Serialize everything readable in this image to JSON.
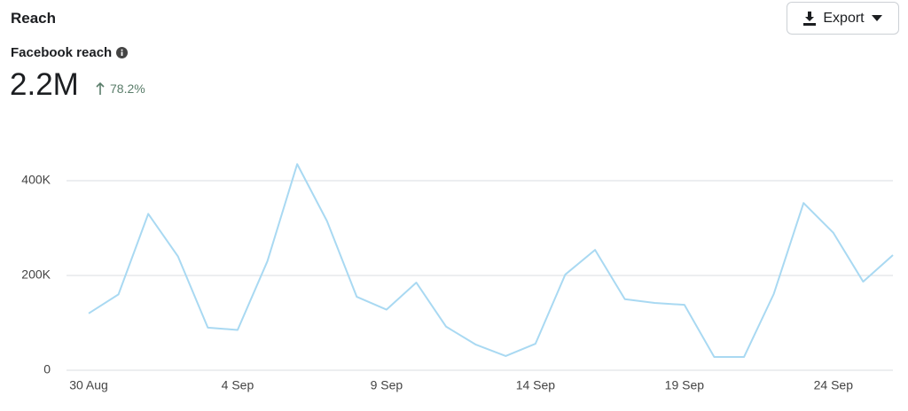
{
  "header": {
    "title": "Reach",
    "button": "Export"
  },
  "metric": {
    "label": "Facebook reach",
    "value": "2.2M",
    "change": "78.2%"
  },
  "chart_data": {
    "type": "line",
    "categories": [
      "30 Aug",
      null,
      null,
      null,
      null,
      "4 Sep",
      null,
      null,
      null,
      null,
      "9 Sep",
      null,
      null,
      null,
      null,
      "14 Sep",
      null,
      null,
      null,
      null,
      "19 Sep",
      null,
      null,
      null,
      null,
      "24 Sep",
      null,
      null
    ],
    "series": [
      {
        "name": "Facebook reach",
        "color": "#a9d9f2",
        "values": [
          120000,
          160000,
          330000,
          240000,
          90000,
          85000,
          230000,
          435000,
          315000,
          155000,
          128000,
          185000,
          92000,
          54000,
          30000,
          56000,
          202000,
          254000,
          150000,
          142000,
          138000,
          28000,
          28000,
          161000,
          353000,
          290000,
          187000,
          243000
        ]
      }
    ],
    "ylim": [
      0,
      500000
    ],
    "yticks": [
      0,
      {
        "value": 200000,
        "label": "200K"
      },
      {
        "value": 400000,
        "label": "400K"
      }
    ],
    "grid": true
  }
}
